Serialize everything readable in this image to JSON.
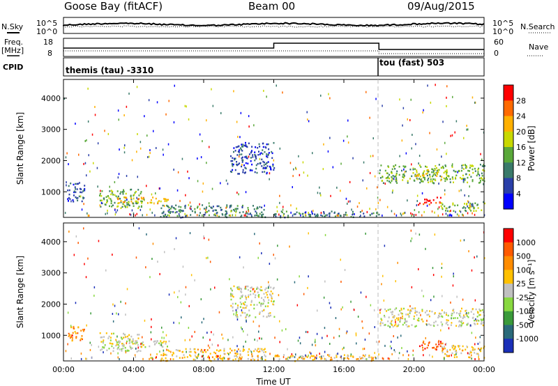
{
  "header": {
    "station": "Goose Bay (fitACF)",
    "beam": "Beam 00",
    "date": "09/Aug/2015"
  },
  "strip_labels": {
    "nsky": "N.Sky",
    "nsearch": "N.Search",
    "freq": "Freq.",
    "freq_unit": "[MHz]",
    "nave": "Nave",
    "cpid": "CPID"
  },
  "noise_panel": {
    "left_ticks": [
      "10^5",
      "10^0"
    ],
    "right_ticks": [
      "10^5",
      "10^0"
    ]
  },
  "freq_panel": {
    "left_ticks": [
      "18",
      "8"
    ],
    "right_ticks": [
      "60",
      "0"
    ]
  },
  "cpid_panel": {
    "segments": [
      {
        "label": "themis (tau) -3310",
        "start_hour": 0,
        "end_hour": 18
      },
      {
        "label": "tou (fast) 503",
        "start_hour": 18,
        "end_hour": 24
      }
    ]
  },
  "chart_data": [
    {
      "type": "heatmap",
      "title": "",
      "ylabel": "Slant Range [km]",
      "xlabel": "",
      "x_ticks": [
        "00:00",
        "04:00",
        "08:00",
        "12:00",
        "16:00",
        "20:00",
        "00:00"
      ],
      "x_range_hours": [
        0,
        24
      ],
      "y_ticks": [
        1000,
        2000,
        3000,
        4000
      ],
      "ylim": [
        180,
        4600
      ],
      "colorbar": {
        "label": "Power [dB]",
        "ticks": [
          "4",
          "8",
          "12",
          "16",
          "20",
          "24",
          "28"
        ],
        "colors": [
          "#0000ff",
          "#2a3fa8",
          "#3a7a6a",
          "#5aa83a",
          "#c8d800",
          "#ffb000",
          "#ff6a00",
          "#ff0000"
        ]
      },
      "features": [
        {
          "hours": [
            0.2,
            1.2
          ],
          "range_km": [
            700,
            1300
          ],
          "level": 1
        },
        {
          "hours": [
            2.0,
            4.5
          ],
          "range_km": [
            500,
            1100
          ],
          "level": 3
        },
        {
          "hours": [
            3.0,
            6.0
          ],
          "range_km": [
            650,
            850
          ],
          "level": 5
        },
        {
          "hours": [
            5.5,
            11.5
          ],
          "range_km": [
            200,
            600
          ],
          "level": 2
        },
        {
          "hours": [
            9.5,
            12.0
          ],
          "range_km": [
            1600,
            2600
          ],
          "level": 1
        },
        {
          "hours": [
            18.0,
            24.0
          ],
          "range_km": [
            1300,
            1900
          ],
          "level": 3
        },
        {
          "hours": [
            20.0,
            22.0
          ],
          "range_km": [
            1500,
            1750
          ],
          "level": 4
        },
        {
          "hours": [
            20.2,
            21.5
          ],
          "range_km": [
            600,
            850
          ],
          "level": 7
        },
        {
          "hours": [
            21.5,
            24.0
          ],
          "range_km": [
            400,
            700
          ],
          "level": 3
        },
        {
          "hours": [
            12.0,
            18.0
          ],
          "range_km": [
            200,
            400
          ],
          "level": 2
        }
      ]
    },
    {
      "type": "heatmap",
      "title": "",
      "ylabel": "Slant Range [km]",
      "xlabel": "Time UT",
      "x_ticks": [
        "00:00",
        "04:00",
        "08:00",
        "12:00",
        "16:00",
        "20:00",
        "00:00"
      ],
      "x_range_hours": [
        0,
        24
      ],
      "y_ticks": [
        1000,
        2000,
        3000,
        4000
      ],
      "ylim": [
        180,
        4600
      ],
      "colorbar": {
        "label": "Velocity [m s⁻¹]",
        "ticks": [
          "1000",
          "500",
          "100",
          "25",
          "-25",
          "-100",
          "-500",
          "-1000"
        ],
        "colors": [
          "#1a2fb8",
          "#2a6a7a",
          "#3a9a3a",
          "#88d840",
          "#c0c0c0",
          "#ffc000",
          "#ff8c00",
          "#ff5a00",
          "#ff0000"
        ]
      },
      "features": [
        {
          "hours": [
            0.2,
            1.2
          ],
          "range_km": [
            800,
            1300
          ],
          "level": 6
        },
        {
          "hours": [
            2.0,
            4.5
          ],
          "range_km": [
            500,
            1100
          ],
          "level": 4
        },
        {
          "hours": [
            3.0,
            6.0
          ],
          "range_km": [
            650,
            850
          ],
          "level": 4
        },
        {
          "hours": [
            5.5,
            11.5
          ],
          "range_km": [
            200,
            600
          ],
          "level": 5
        },
        {
          "hours": [
            9.5,
            12.0
          ],
          "range_km": [
            1600,
            2600
          ],
          "level": 4
        },
        {
          "hours": [
            18.0,
            24.0
          ],
          "range_km": [
            1300,
            1900
          ],
          "level": 4
        },
        {
          "hours": [
            20.2,
            21.8
          ],
          "range_km": [
            550,
            850
          ],
          "level": 7
        },
        {
          "hours": [
            21.5,
            24.0
          ],
          "range_km": [
            300,
            700
          ],
          "level": 5
        },
        {
          "hours": [
            12.0,
            18.0
          ],
          "range_km": [
            200,
            400
          ],
          "level": 5
        }
      ]
    }
  ]
}
